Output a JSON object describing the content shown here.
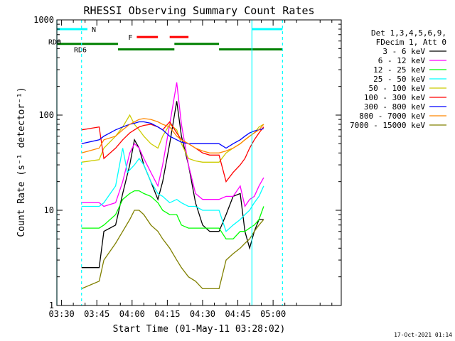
{
  "chart_data": {
    "type": "line",
    "title": "RHESSI Observing Summary Count Rates",
    "xlabel": "Start Time (01-May-11 03:28:02)",
    "ylabel": "Count Rate (s⁻¹ detector⁻¹)",
    "x_unit": "minutes after 03:28:02",
    "xlim": [
      0,
      121
    ],
    "ylim": [
      1,
      1000
    ],
    "yscale": "log",
    "x_ticks": [
      {
        "v": 2,
        "label": "03:30"
      },
      {
        "v": 17,
        "label": "03:45"
      },
      {
        "v": 32,
        "label": "04:00"
      },
      {
        "v": 47,
        "label": "04:15"
      },
      {
        "v": 62,
        "label": "04:30"
      },
      {
        "v": 77,
        "label": "04:45"
      },
      {
        "v": 92,
        "label": "05:00"
      }
    ],
    "y_ticks": [
      {
        "v": 1,
        "label": "1"
      },
      {
        "v": 10,
        "label": "10"
      },
      {
        "v": 100,
        "label": "100"
      },
      {
        "v": 1000,
        "label": "1000"
      }
    ],
    "legend_header": [
      "Det 1,3,4,5,6,9,",
      "FDecim 1, Att 0"
    ],
    "legend_position": "right",
    "footer": "17-Oct-2021 01:14",
    "series": [
      {
        "name": "3 - 6 keV",
        "color": "#000000",
        "points": [
          [
            10.5,
            2.5
          ],
          [
            18,
            2.5
          ],
          [
            20,
            6
          ],
          [
            25,
            7
          ],
          [
            28,
            15
          ],
          [
            31,
            30
          ],
          [
            33,
            55
          ],
          [
            35,
            45
          ],
          [
            37,
            30
          ],
          [
            40,
            20
          ],
          [
            43,
            13
          ],
          [
            45,
            20
          ],
          [
            48,
            50
          ],
          [
            51,
            140
          ],
          [
            53,
            60
          ],
          [
            56,
            30
          ],
          [
            59,
            12
          ],
          [
            62,
            7
          ],
          [
            65,
            6
          ],
          [
            69,
            6
          ],
          [
            72,
            9
          ],
          [
            75,
            14
          ],
          [
            78,
            15
          ],
          [
            80,
            6
          ],
          [
            82,
            4
          ],
          [
            84,
            6
          ],
          [
            86,
            8
          ],
          [
            88,
            8
          ]
        ]
      },
      {
        "name": "6 - 12 keV",
        "color": "#ff00ff",
        "points": [
          [
            10.5,
            12
          ],
          [
            18,
            12
          ],
          [
            20,
            11
          ],
          [
            25,
            12
          ],
          [
            28,
            20
          ],
          [
            31,
            40
          ],
          [
            33,
            50
          ],
          [
            35,
            45
          ],
          [
            37,
            35
          ],
          [
            40,
            25
          ],
          [
            43,
            18
          ],
          [
            45,
            30
          ],
          [
            48,
            80
          ],
          [
            51,
            220
          ],
          [
            53,
            80
          ],
          [
            56,
            30
          ],
          [
            59,
            15
          ],
          [
            62,
            13
          ],
          [
            65,
            13
          ],
          [
            69,
            13
          ],
          [
            72,
            14
          ],
          [
            75,
            14
          ],
          [
            78,
            18
          ],
          [
            80,
            11
          ],
          [
            82,
            13
          ],
          [
            84,
            14
          ],
          [
            86,
            18
          ],
          [
            88,
            22
          ]
        ]
      },
      {
        "name": "12 - 25 keV",
        "color": "#00ff00",
        "points": [
          [
            10.5,
            6.5
          ],
          [
            18,
            6.5
          ],
          [
            20,
            7
          ],
          [
            25,
            9
          ],
          [
            28,
            13
          ],
          [
            31,
            15
          ],
          [
            33,
            16
          ],
          [
            35,
            16
          ],
          [
            37,
            15
          ],
          [
            40,
            14
          ],
          [
            43,
            12
          ],
          [
            45,
            10
          ],
          [
            48,
            9
          ],
          [
            51,
            9
          ],
          [
            53,
            7
          ],
          [
            56,
            6.5
          ],
          [
            59,
            6.5
          ],
          [
            62,
            6.5
          ],
          [
            65,
            6.5
          ],
          [
            69,
            6.5
          ],
          [
            72,
            5
          ],
          [
            75,
            5
          ],
          [
            78,
            6
          ],
          [
            80,
            6
          ],
          [
            82,
            6.5
          ],
          [
            84,
            7
          ],
          [
            86,
            8
          ],
          [
            88,
            11
          ]
        ]
      },
      {
        "name": "25 - 50 keV",
        "color": "#00ffff",
        "points": [
          [
            10.5,
            11
          ],
          [
            18,
            11
          ],
          [
            20,
            12
          ],
          [
            25,
            18
          ],
          [
            28,
            45
          ],
          [
            30,
            25
          ],
          [
            33,
            30
          ],
          [
            35,
            35
          ],
          [
            37,
            30
          ],
          [
            40,
            20
          ],
          [
            43,
            15
          ],
          [
            45,
            14
          ],
          [
            48,
            12
          ],
          [
            51,
            13
          ],
          [
            53,
            12
          ],
          [
            56,
            11
          ],
          [
            59,
            11
          ],
          [
            62,
            10
          ],
          [
            65,
            10
          ],
          [
            69,
            10
          ],
          [
            72,
            6
          ],
          [
            75,
            7
          ],
          [
            78,
            8
          ],
          [
            80,
            9
          ],
          [
            82,
            10
          ],
          [
            84,
            12
          ],
          [
            86,
            14
          ],
          [
            88,
            18
          ]
        ]
      },
      {
        "name": "50 - 100 keV",
        "color": "#cccc00",
        "points": [
          [
            10.5,
            32
          ],
          [
            18,
            34
          ],
          [
            20,
            45
          ],
          [
            25,
            60
          ],
          [
            28,
            75
          ],
          [
            31,
            100
          ],
          [
            33,
            80
          ],
          [
            35,
            70
          ],
          [
            37,
            60
          ],
          [
            40,
            50
          ],
          [
            43,
            45
          ],
          [
            45,
            60
          ],
          [
            48,
            80
          ],
          [
            51,
            70
          ],
          [
            53,
            50
          ],
          [
            56,
            35
          ],
          [
            59,
            33
          ],
          [
            62,
            32
          ],
          [
            65,
            32
          ],
          [
            69,
            32
          ],
          [
            72,
            40
          ],
          [
            75,
            45
          ],
          [
            78,
            50
          ],
          [
            80,
            55
          ],
          [
            82,
            60
          ],
          [
            84,
            65
          ],
          [
            86,
            75
          ],
          [
            88,
            80
          ]
        ]
      },
      {
        "name": "100 - 300 keV",
        "color": "#ff0000",
        "points": [
          [
            10.5,
            70
          ],
          [
            18,
            75
          ],
          [
            20,
            35
          ],
          [
            25,
            45
          ],
          [
            28,
            55
          ],
          [
            31,
            65
          ],
          [
            33,
            70
          ],
          [
            35,
            75
          ],
          [
            37,
            78
          ],
          [
            40,
            80
          ],
          [
            43,
            75
          ],
          [
            45,
            70
          ],
          [
            48,
            85
          ],
          [
            51,
            65
          ],
          [
            53,
            55
          ],
          [
            56,
            50
          ],
          [
            59,
            45
          ],
          [
            62,
            40
          ],
          [
            65,
            38
          ],
          [
            69,
            38
          ],
          [
            72,
            20
          ],
          [
            75,
            25
          ],
          [
            78,
            30
          ],
          [
            80,
            35
          ],
          [
            82,
            45
          ],
          [
            84,
            55
          ],
          [
            86,
            65
          ],
          [
            88,
            75
          ]
        ]
      },
      {
        "name": "300 - 800 keV",
        "color": "#0000ff",
        "points": [
          [
            10.5,
            50
          ],
          [
            18,
            55
          ],
          [
            20,
            60
          ],
          [
            25,
            70
          ],
          [
            28,
            75
          ],
          [
            31,
            80
          ],
          [
            33,
            82
          ],
          [
            35,
            85
          ],
          [
            37,
            85
          ],
          [
            40,
            82
          ],
          [
            43,
            75
          ],
          [
            45,
            70
          ],
          [
            48,
            60
          ],
          [
            51,
            55
          ],
          [
            53,
            52
          ],
          [
            56,
            50
          ],
          [
            59,
            50
          ],
          [
            62,
            50
          ],
          [
            65,
            50
          ],
          [
            69,
            50
          ],
          [
            72,
            45
          ],
          [
            75,
            50
          ],
          [
            78,
            55
          ],
          [
            80,
            60
          ],
          [
            82,
            65
          ],
          [
            84,
            68
          ],
          [
            86,
            70
          ],
          [
            88,
            72
          ]
        ]
      },
      {
        "name": "800 - 7000 keV",
        "color": "#ff8800",
        "points": [
          [
            10.5,
            40
          ],
          [
            18,
            45
          ],
          [
            20,
            55
          ],
          [
            25,
            60
          ],
          [
            28,
            70
          ],
          [
            31,
            80
          ],
          [
            33,
            85
          ],
          [
            35,
            90
          ],
          [
            37,
            92
          ],
          [
            40,
            90
          ],
          [
            43,
            85
          ],
          [
            45,
            80
          ],
          [
            48,
            75
          ],
          [
            51,
            60
          ],
          [
            53,
            55
          ],
          [
            56,
            50
          ],
          [
            59,
            45
          ],
          [
            62,
            42
          ],
          [
            65,
            40
          ],
          [
            69,
            40
          ],
          [
            72,
            42
          ],
          [
            75,
            45
          ],
          [
            78,
            50
          ],
          [
            80,
            55
          ],
          [
            82,
            60
          ],
          [
            84,
            65
          ],
          [
            86,
            70
          ],
          [
            88,
            80
          ]
        ]
      },
      {
        "name": "7000 - 15000 keV",
        "color": "#808000",
        "points": [
          [
            10.5,
            1.5
          ],
          [
            18,
            1.8
          ],
          [
            20,
            3
          ],
          [
            25,
            4.5
          ],
          [
            28,
            6
          ],
          [
            31,
            8
          ],
          [
            33,
            10
          ],
          [
            35,
            10
          ],
          [
            37,
            9
          ],
          [
            40,
            7
          ],
          [
            43,
            6
          ],
          [
            45,
            5
          ],
          [
            48,
            4
          ],
          [
            51,
            3
          ],
          [
            53,
            2.5
          ],
          [
            56,
            2
          ],
          [
            59,
            1.8
          ],
          [
            62,
            1.5
          ],
          [
            65,
            1.5
          ],
          [
            69,
            1.5
          ],
          [
            72,
            3
          ],
          [
            75,
            3.5
          ],
          [
            78,
            4
          ],
          [
            80,
            4.5
          ],
          [
            82,
            5
          ],
          [
            84,
            6
          ],
          [
            86,
            7
          ],
          [
            88,
            8
          ]
        ]
      }
    ],
    "bars": [
      {
        "label": "N",
        "label_color": "#00ffff",
        "color": "#00ffff",
        "y": 800,
        "segments": [
          [
            0,
            13
          ],
          [
            83,
            96
          ]
        ]
      },
      {
        "label": "F",
        "label_color": "#ff0000",
        "color": "#ff0000",
        "y": 660,
        "segments": [
          [
            34,
            43
          ],
          [
            48,
            56
          ]
        ]
      },
      {
        "label": "RD0",
        "label_color": "#008000",
        "color": "#008000",
        "y": 560,
        "segments": [
          [
            0,
            26
          ],
          [
            50,
            69
          ]
        ]
      },
      {
        "label": "RD6",
        "label_color": "#008000",
        "color": "#008000",
        "y": 490,
        "segments": [
          [
            26,
            50
          ],
          [
            69,
            96
          ]
        ]
      }
    ],
    "vlines": [
      {
        "x": 0,
        "style": "solid",
        "color": "#00ffff"
      },
      {
        "x": 10.5,
        "style": "dashed",
        "color": "#00ffff"
      },
      {
        "x": 83,
        "style": "solid",
        "color": "#00ffff"
      },
      {
        "x": 96,
        "style": "dashed",
        "color": "#00ffff"
      }
    ]
  }
}
